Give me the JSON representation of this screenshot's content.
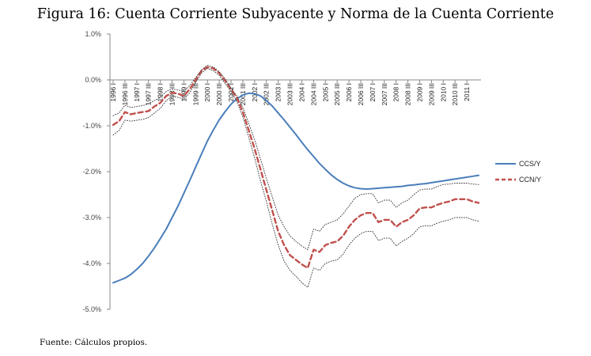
{
  "title": "Figura 16: Cuenta Corriente Subyacente y Norma de la Cuenta Corriente",
  "source": "Fuente: Cálculos propios.",
  "chart_data": {
    "type": "line",
    "yticks": [
      "1.0%",
      "0.0%",
      "-1.0%",
      "-2.0%",
      "-3.0%",
      "-4.0%",
      "-5.0%"
    ],
    "ylim": [
      -5.0,
      1.0
    ],
    "x_labels": [
      "1996 I",
      "1996 III",
      "1997 I",
      "1997 III",
      "1998 I",
      "1998 III",
      "1999 I",
      "1999 III",
      "2000 I",
      "2000 III",
      "2001 I",
      "2001 III",
      "2002 I",
      "2002 III",
      "2003 I",
      "2003 III",
      "2004 I",
      "2004 III",
      "2005 I",
      "2005 III",
      "2006 I",
      "2006 III",
      "2007 I",
      "2007 III",
      "2008 I",
      "2008 III",
      "2009 I",
      "2009 III",
      "2010 I",
      "2010 III",
      "2011 I"
    ],
    "n_points": 63,
    "series": [
      {
        "name": "CCS/Y",
        "color": "#4a7ebb",
        "style": "solid",
        "values": [
          -4.42,
          -4.37,
          -4.32,
          -4.24,
          -4.13,
          -4.0,
          -3.84,
          -3.66,
          -3.46,
          -3.25,
          -3.0,
          -2.75,
          -2.47,
          -2.19,
          -1.9,
          -1.61,
          -1.33,
          -1.09,
          -0.87,
          -0.69,
          -0.53,
          -0.41,
          -0.33,
          -0.29,
          -0.3,
          -0.35,
          -0.45,
          -0.57,
          -0.72,
          -0.87,
          -1.03,
          -1.19,
          -1.36,
          -1.52,
          -1.67,
          -1.82,
          -1.95,
          -2.07,
          -2.17,
          -2.25,
          -2.31,
          -2.35,
          -2.37,
          -2.38,
          -2.37,
          -2.36,
          -2.35,
          -2.34,
          -2.33,
          -2.32,
          -2.3,
          -2.29,
          -2.27,
          -2.26,
          -2.24,
          -2.22,
          -2.2,
          -2.18,
          -2.16,
          -2.14,
          -2.12,
          -2.1,
          -2.08
        ]
      },
      {
        "name": "CCN/Y",
        "color": "#c0504d",
        "style": "dashed",
        "values": [
          -0.98,
          -0.9,
          -0.7,
          -0.75,
          -0.72,
          -0.7,
          -0.68,
          -0.58,
          -0.5,
          -0.35,
          -0.28,
          -0.3,
          -0.35,
          -0.2,
          0.0,
          0.2,
          0.28,
          0.25,
          0.15,
          -0.02,
          -0.2,
          -0.4,
          -0.7,
          -1.1,
          -1.5,
          -1.95,
          -2.4,
          -2.85,
          -3.3,
          -3.6,
          -3.82,
          -3.92,
          -4.02,
          -4.1,
          -3.7,
          -3.75,
          -3.6,
          -3.55,
          -3.52,
          -3.4,
          -3.2,
          -3.05,
          -2.95,
          -2.9,
          -2.9,
          -3.1,
          -3.05,
          -3.05,
          -3.2,
          -3.1,
          -3.05,
          -2.95,
          -2.8,
          -2.78,
          -2.78,
          -2.72,
          -2.68,
          -2.65,
          -2.6,
          -2.6,
          -2.6,
          -2.65,
          -2.68
        ]
      },
      {
        "name": "",
        "color": "#333333",
        "style": "dotted",
        "values": [
          -0.78,
          -0.72,
          -0.55,
          -0.6,
          -0.58,
          -0.56,
          -0.52,
          -0.45,
          -0.38,
          -0.25,
          -0.2,
          -0.22,
          -0.25,
          -0.12,
          0.05,
          0.22,
          0.32,
          0.28,
          0.18,
          0.02,
          -0.18,
          -0.35,
          -0.6,
          -0.95,
          -1.3,
          -1.72,
          -2.15,
          -2.55,
          -2.95,
          -3.2,
          -3.4,
          -3.52,
          -3.62,
          -3.7,
          -3.25,
          -3.3,
          -3.15,
          -3.1,
          -3.05,
          -2.92,
          -2.75,
          -2.58,
          -2.5,
          -2.48,
          -2.48,
          -2.68,
          -2.62,
          -2.62,
          -2.78,
          -2.68,
          -2.62,
          -2.5,
          -2.4,
          -2.38,
          -2.38,
          -2.32,
          -2.28,
          -2.27,
          -2.25,
          -2.25,
          -2.25,
          -2.27,
          -2.28
        ]
      },
      {
        "name": "",
        "color": "#333333",
        "style": "dotted",
        "values": [
          -1.2,
          -1.1,
          -0.88,
          -0.9,
          -0.88,
          -0.86,
          -0.82,
          -0.72,
          -0.62,
          -0.45,
          -0.36,
          -0.38,
          -0.42,
          -0.28,
          -0.05,
          0.15,
          0.25,
          0.2,
          0.1,
          -0.08,
          -0.25,
          -0.48,
          -0.8,
          -1.25,
          -1.7,
          -2.2,
          -2.65,
          -3.15,
          -3.6,
          -3.95,
          -4.15,
          -4.28,
          -4.42,
          -4.52,
          -4.1,
          -4.15,
          -4.0,
          -3.95,
          -3.92,
          -3.8,
          -3.6,
          -3.45,
          -3.35,
          -3.3,
          -3.3,
          -3.5,
          -3.45,
          -3.45,
          -3.62,
          -3.52,
          -3.45,
          -3.35,
          -3.2,
          -3.18,
          -3.18,
          -3.12,
          -3.08,
          -3.05,
          -3.0,
          -3.0,
          -3.0,
          -3.05,
          -3.08
        ]
      }
    ],
    "legend": {
      "position": "right",
      "entries": [
        "CCS/Y",
        "CCN/Y"
      ]
    },
    "grid": false
  }
}
